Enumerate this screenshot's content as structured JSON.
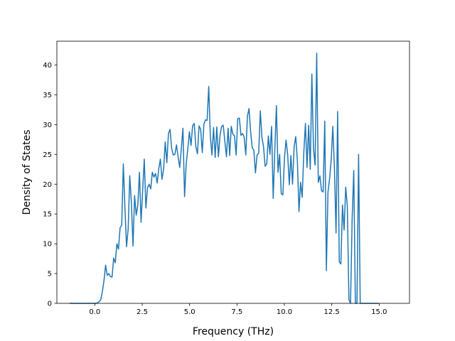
{
  "chart_data": {
    "type": "line",
    "title": "",
    "xlabel": "Frequency (THz)",
    "ylabel": "Density of States",
    "xlim": [
      -2.0,
      16.6
    ],
    "ylim": [
      0,
      44
    ],
    "xticks": [
      0.0,
      2.5,
      5.0,
      7.5,
      10.0,
      12.5,
      15.0
    ],
    "xtick_labels": [
      "0.0",
      "2.5",
      "5.0",
      "7.5",
      "10.0",
      "12.5",
      "15.0"
    ],
    "yticks": [
      0,
      5,
      10,
      15,
      20,
      25,
      30,
      35,
      40
    ],
    "ytick_labels": [
      "0",
      "5",
      "10",
      "15",
      "20",
      "25",
      "30",
      "35",
      "40"
    ],
    "grid": false,
    "legend": "none",
    "line_color": "#1f77b4",
    "x_start": -1.3,
    "x_step": 0.085,
    "series": [
      {
        "values": [
          0,
          0,
          0,
          0,
          0,
          0,
          0,
          0,
          0,
          0,
          0,
          0,
          0,
          0,
          0,
          0,
          0,
          0.1,
          0.3,
          0.6,
          2.0,
          3.8,
          6.4,
          4.7,
          5.0,
          4.5,
          4.4,
          7.6,
          6.8,
          10.0,
          9.1,
          12.7,
          13.1,
          23.4,
          16.0,
          9.5,
          12.5,
          21.4,
          16.9,
          9.6,
          18.1,
          14.8,
          16.5,
          22.0,
          13.6,
          19.0,
          24.2,
          16.0,
          19.4,
          20.0,
          19.2,
          22.0,
          21.2,
          21.8,
          20.2,
          22.6,
          24.2,
          20.8,
          22.5,
          27.1,
          23.6,
          28.5,
          29.2,
          26.0,
          24.9,
          25.0,
          26.6,
          24.6,
          22.8,
          26.0,
          29.4,
          17.9,
          23.3,
          25.9,
          28.8,
          26.5,
          29.8,
          30.2,
          26.3,
          25.1,
          29.8,
          29.2,
          25.3,
          30.1,
          30.8,
          30.7,
          36.4,
          28.0,
          24.9,
          29.5,
          24.5,
          29.6,
          24.6,
          28.2,
          29.7,
          29.9,
          27.2,
          24.6,
          29.4,
          24.8,
          29.7,
          28.4,
          28.1,
          24.9,
          31.0,
          31.1,
          28.2,
          28.5,
          27.9,
          24.9,
          31.4,
          32.7,
          28.8,
          26.1,
          25.7,
          21.9,
          24.9,
          25.2,
          32.3,
          27.9,
          26.3,
          23.0,
          23.4,
          28.1,
          25.0,
          29.7,
          17.6,
          25.7,
          33.2,
          22.0,
          25.0,
          18.4,
          18.2,
          24.4,
          27.4,
          24.9,
          19.9,
          24.8,
          20.0,
          26.3,
          28.0,
          24.0,
          15.4,
          20.3,
          17.8,
          25.3,
          30.2,
          22.8,
          29.9,
          22.5,
          38.5,
          26.0,
          23.2,
          42.0,
          20.3,
          21.4,
          18.9,
          18.7,
          30.6,
          5.5,
          18.7,
          20.9,
          24.1,
          29.7,
          22.8,
          11.8,
          32.2,
          7.0,
          6.6,
          16.5,
          12.3,
          19.5,
          16.3,
          0.6,
          0,
          14.2,
          22.3,
          0,
          0,
          25.0,
          0,
          0,
          0,
          0,
          0,
          0,
          0,
          0,
          0,
          0,
          0,
          0
        ]
      }
    ]
  }
}
